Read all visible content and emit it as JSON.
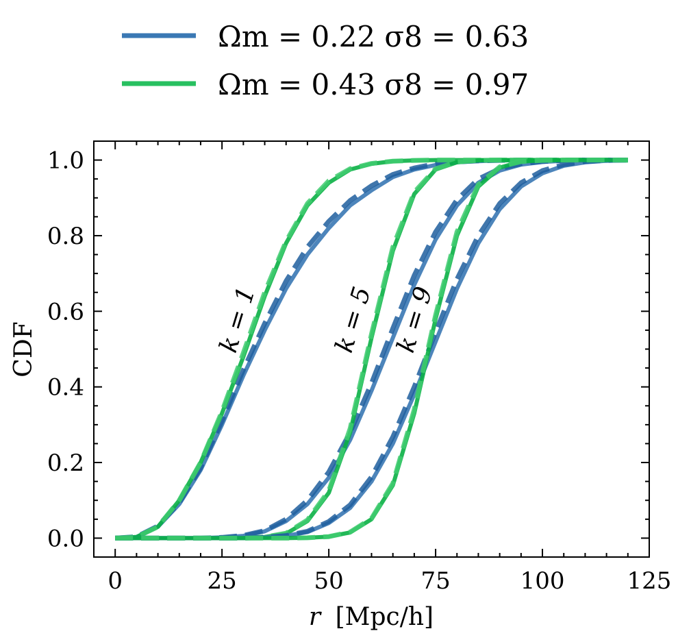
{
  "chart_data": {
    "type": "line",
    "title": "",
    "xlabel_var": "r",
    "xlabel_unit": "[Mpc/h]",
    "ylabel": "CDF",
    "xlim": [
      -5,
      125
    ],
    "ylim": [
      -0.05,
      1.05
    ],
    "xticks": [
      0,
      25,
      50,
      75,
      100,
      125
    ],
    "xtick_labels": [
      "0",
      "25",
      "50",
      "75",
      "100",
      "125"
    ],
    "yticks": [
      0.0,
      0.2,
      0.4,
      0.6,
      0.8,
      1.0
    ],
    "ytick_labels": [
      "0.0",
      "0.2",
      "0.4",
      "0.6",
      "0.8",
      "1.0"
    ],
    "legend_position": "top-center, above plot",
    "legend": [
      {
        "name": "Ωm = 0.22 σ8 = 0.63",
        "color": "#3a78b4"
      },
      {
        "name": "Ωm = 0.43 σ8 = 0.97",
        "color": "#28c060"
      }
    ],
    "colors": {
      "blue_solid": "#3a78b4",
      "blue_dashed": "#1f5e9e",
      "green_solid": "#0ab045",
      "green_dashed": "#3fcb70"
    },
    "annotations": [
      "k = 1",
      "k = 5",
      "k = 9"
    ],
    "x": [
      0,
      5,
      10,
      15,
      20,
      25,
      30,
      35,
      40,
      45,
      50,
      55,
      60,
      65,
      70,
      75,
      80,
      85,
      90,
      95,
      100,
      105,
      110,
      115,
      120
    ],
    "series": [
      {
        "name": "Ωm = 0.22 σ8 = 0.63, k = 1",
        "style": "solid",
        "group": "blue",
        "k": 1,
        "values": [
          0.0,
          0.003,
          0.03,
          0.09,
          0.18,
          0.3,
          0.43,
          0.55,
          0.66,
          0.75,
          0.82,
          0.88,
          0.92,
          0.955,
          0.975,
          0.987,
          0.994,
          0.997,
          0.999,
          1.0,
          1.0,
          1.0,
          1.0,
          1.0,
          1.0
        ]
      },
      {
        "name": "Ωm = 0.22 σ8 = 0.63, k = 1 (dashed)",
        "style": "dashed",
        "group": "blue",
        "k": 1,
        "values": [
          0.0,
          0.004,
          0.032,
          0.094,
          0.186,
          0.31,
          0.445,
          0.568,
          0.68,
          0.77,
          0.838,
          0.893,
          0.932,
          0.962,
          0.979,
          0.99,
          0.995,
          0.998,
          0.999,
          1.0,
          1.0,
          1.0,
          1.0,
          1.0,
          1.0
        ]
      },
      {
        "name": "Ωm = 0.43 σ8 = 0.97, k = 1",
        "style": "solid",
        "group": "green",
        "k": 1,
        "values": [
          0.0,
          0.003,
          0.03,
          0.1,
          0.2,
          0.33,
          0.48,
          0.64,
          0.78,
          0.88,
          0.94,
          0.975,
          0.99,
          0.997,
          0.999,
          1.0,
          1.0,
          1.0,
          1.0,
          1.0,
          1.0,
          1.0,
          1.0,
          1.0,
          1.0
        ]
      },
      {
        "name": "Ωm = 0.43 σ8 = 0.97, k = 1 (dashed)",
        "style": "dashed",
        "group": "green",
        "k": 1,
        "values": [
          0.0,
          0.003,
          0.03,
          0.1,
          0.2,
          0.335,
          0.49,
          0.65,
          0.785,
          0.885,
          0.945,
          0.977,
          0.991,
          0.997,
          0.999,
          1.0,
          1.0,
          1.0,
          1.0,
          1.0,
          1.0,
          1.0,
          1.0,
          1.0,
          1.0
        ]
      },
      {
        "name": "Ωm = 0.22 σ8 = 0.63, k = 5",
        "style": "solid",
        "group": "blue",
        "k": 5,
        "values": [
          0.0,
          0.0,
          0.0,
          0.0,
          0.0,
          0.002,
          0.006,
          0.018,
          0.045,
          0.09,
          0.16,
          0.26,
          0.39,
          0.53,
          0.67,
          0.79,
          0.88,
          0.94,
          0.972,
          0.988,
          0.995,
          0.998,
          1.0,
          1.0,
          1.0
        ]
      },
      {
        "name": "Ωm = 0.22 σ8 = 0.63, k = 5 (dashed)",
        "style": "dashed",
        "group": "blue",
        "k": 5,
        "values": [
          0.0,
          0.0,
          0.0,
          0.0,
          0.0,
          0.002,
          0.007,
          0.02,
          0.05,
          0.1,
          0.175,
          0.28,
          0.41,
          0.555,
          0.695,
          0.81,
          0.895,
          0.95,
          0.977,
          0.99,
          0.996,
          0.999,
          1.0,
          1.0,
          1.0
        ]
      },
      {
        "name": "Ωm = 0.43 σ8 = 0.97, k = 5",
        "style": "solid",
        "group": "green",
        "k": 5,
        "values": [
          0.0,
          0.0,
          0.0,
          0.0,
          0.0,
          0.0,
          0.0,
          0.003,
          0.012,
          0.045,
          0.12,
          0.28,
          0.53,
          0.76,
          0.91,
          0.975,
          0.994,
          0.999,
          1.0,
          1.0,
          1.0,
          1.0,
          1.0,
          1.0,
          1.0
        ]
      },
      {
        "name": "Ωm = 0.43 σ8 = 0.97, k = 5 (dashed)",
        "style": "dashed",
        "group": "green",
        "k": 5,
        "values": [
          0.0,
          0.0,
          0.0,
          0.0,
          0.0,
          0.0,
          0.0,
          0.003,
          0.013,
          0.048,
          0.125,
          0.29,
          0.54,
          0.77,
          0.915,
          0.977,
          0.995,
          0.999,
          1.0,
          1.0,
          1.0,
          1.0,
          1.0,
          1.0,
          1.0
        ]
      },
      {
        "name": "Ωm = 0.22 σ8 = 0.63, k = 9",
        "style": "solid",
        "group": "blue",
        "k": 9,
        "values": [
          0.0,
          0.0,
          0.0,
          0.0,
          0.0,
          0.0,
          0.0,
          0.002,
          0.006,
          0.016,
          0.04,
          0.08,
          0.15,
          0.25,
          0.38,
          0.52,
          0.66,
          0.78,
          0.87,
          0.93,
          0.965,
          0.985,
          0.994,
          0.998,
          1.0
        ]
      },
      {
        "name": "Ωm = 0.22 σ8 = 0.63, k = 9 (dashed)",
        "style": "dashed",
        "group": "blue",
        "k": 9,
        "values": [
          0.0,
          0.0,
          0.0,
          0.0,
          0.0,
          0.0,
          0.0,
          0.002,
          0.007,
          0.018,
          0.044,
          0.088,
          0.162,
          0.268,
          0.4,
          0.545,
          0.685,
          0.8,
          0.885,
          0.94,
          0.972,
          0.988,
          0.996,
          0.999,
          1.0
        ]
      },
      {
        "name": "Ωm = 0.43 σ8 = 0.97, k = 9",
        "style": "solid",
        "group": "green",
        "k": 9,
        "values": [
          0.0,
          0.0,
          0.0,
          0.0,
          0.0,
          0.0,
          0.0,
          0.0,
          0.0,
          0.001,
          0.004,
          0.015,
          0.05,
          0.14,
          0.33,
          0.58,
          0.8,
          0.93,
          0.98,
          0.996,
          0.999,
          1.0,
          1.0,
          1.0,
          1.0
        ]
      },
      {
        "name": "Ωm = 0.43 σ8 = 0.97, k = 9 (dashed)",
        "style": "dashed",
        "group": "green",
        "k": 9,
        "values": [
          0.0,
          0.0,
          0.0,
          0.0,
          0.0,
          0.0,
          0.0,
          0.0,
          0.0,
          0.001,
          0.004,
          0.016,
          0.052,
          0.145,
          0.34,
          0.59,
          0.81,
          0.935,
          0.982,
          0.996,
          0.999,
          1.0,
          1.0,
          1.0,
          1.0
        ]
      }
    ]
  }
}
